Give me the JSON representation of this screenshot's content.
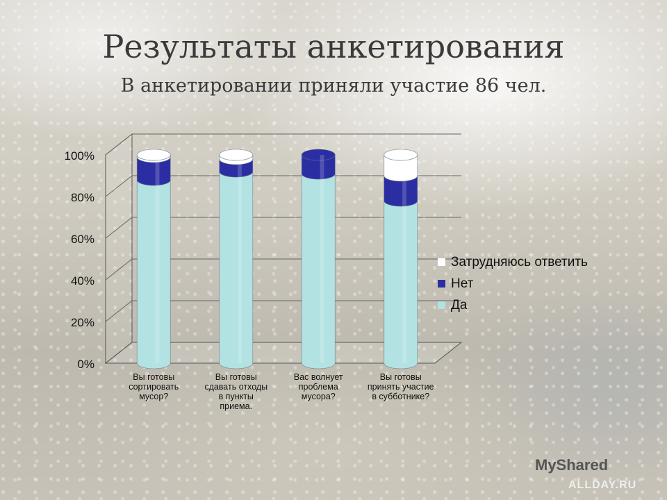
{
  "slide": {
    "title": "Результаты анкетирования",
    "subtitle": "В анкетировании приняли участие 86 чел."
  },
  "chart_data": {
    "type": "bar",
    "stacked": true,
    "percent": true,
    "categories": [
      "Вы готовы сортировать мусор?",
      "Вы готовы сдавать отходы в пункты приема.",
      "Вас волнует проблема мусора?",
      "Вы готовы принять участие в субботнике?"
    ],
    "series": [
      {
        "name": "Да",
        "values": [
          88,
          92,
          91,
          78
        ],
        "color": "#b2e2e2"
      },
      {
        "name": "Нет",
        "values": [
          11,
          6,
          9,
          12
        ],
        "color": "#2b2ea3"
      },
      {
        "name": "Затрудняюсь ответить",
        "values": [
          1,
          2,
          0,
          10
        ],
        "color": "#ffffff"
      }
    ],
    "ylim": [
      0,
      100
    ],
    "yticks": [
      "0%",
      "20%",
      "40%",
      "60%",
      "80%",
      "100%"
    ],
    "grid": true,
    "legend_position": "right",
    "legend_order": [
      "Затрудняюсь ответить",
      "Нет",
      "Да"
    ]
  },
  "watermark": {
    "brand": "MyShared",
    "site": "ALLDAY.RU"
  }
}
